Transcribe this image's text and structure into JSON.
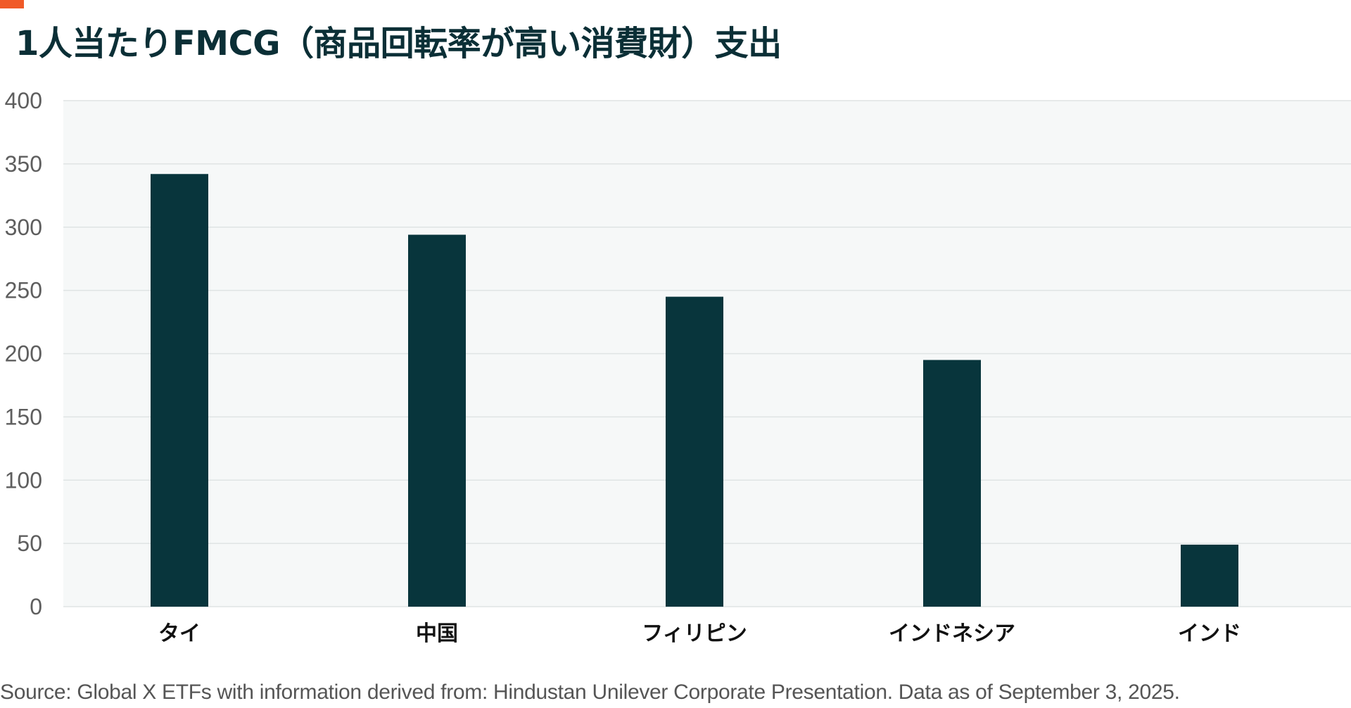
{
  "title": "1人当たりFMCG（商品回転率が高い消費財）支出",
  "source": "Source: Global X ETFs with information derived from: Hindustan Unilever Corporate Presentation. Data as of September 3, 2025.",
  "colors": {
    "accent": "#f05a28",
    "bar": "#08353c",
    "plot_background": "#f6f8f8",
    "grid": "#dfe4e4",
    "title": "#0b2f36"
  },
  "chart_data": {
    "type": "bar",
    "categories": [
      "タイ",
      "中国",
      "フィリピン",
      "インドネシア",
      "インド"
    ],
    "values": [
      342,
      294,
      245,
      195,
      49
    ],
    "yticks": [
      "0",
      "50",
      "100",
      "150",
      "200",
      "250",
      "300",
      "350",
      "400"
    ],
    "ylim": [
      0,
      400
    ],
    "grid": true,
    "title": "1人当たりFMCG（商品回転率が高い消費財）支出",
    "xlabel": "",
    "ylabel": ""
  }
}
